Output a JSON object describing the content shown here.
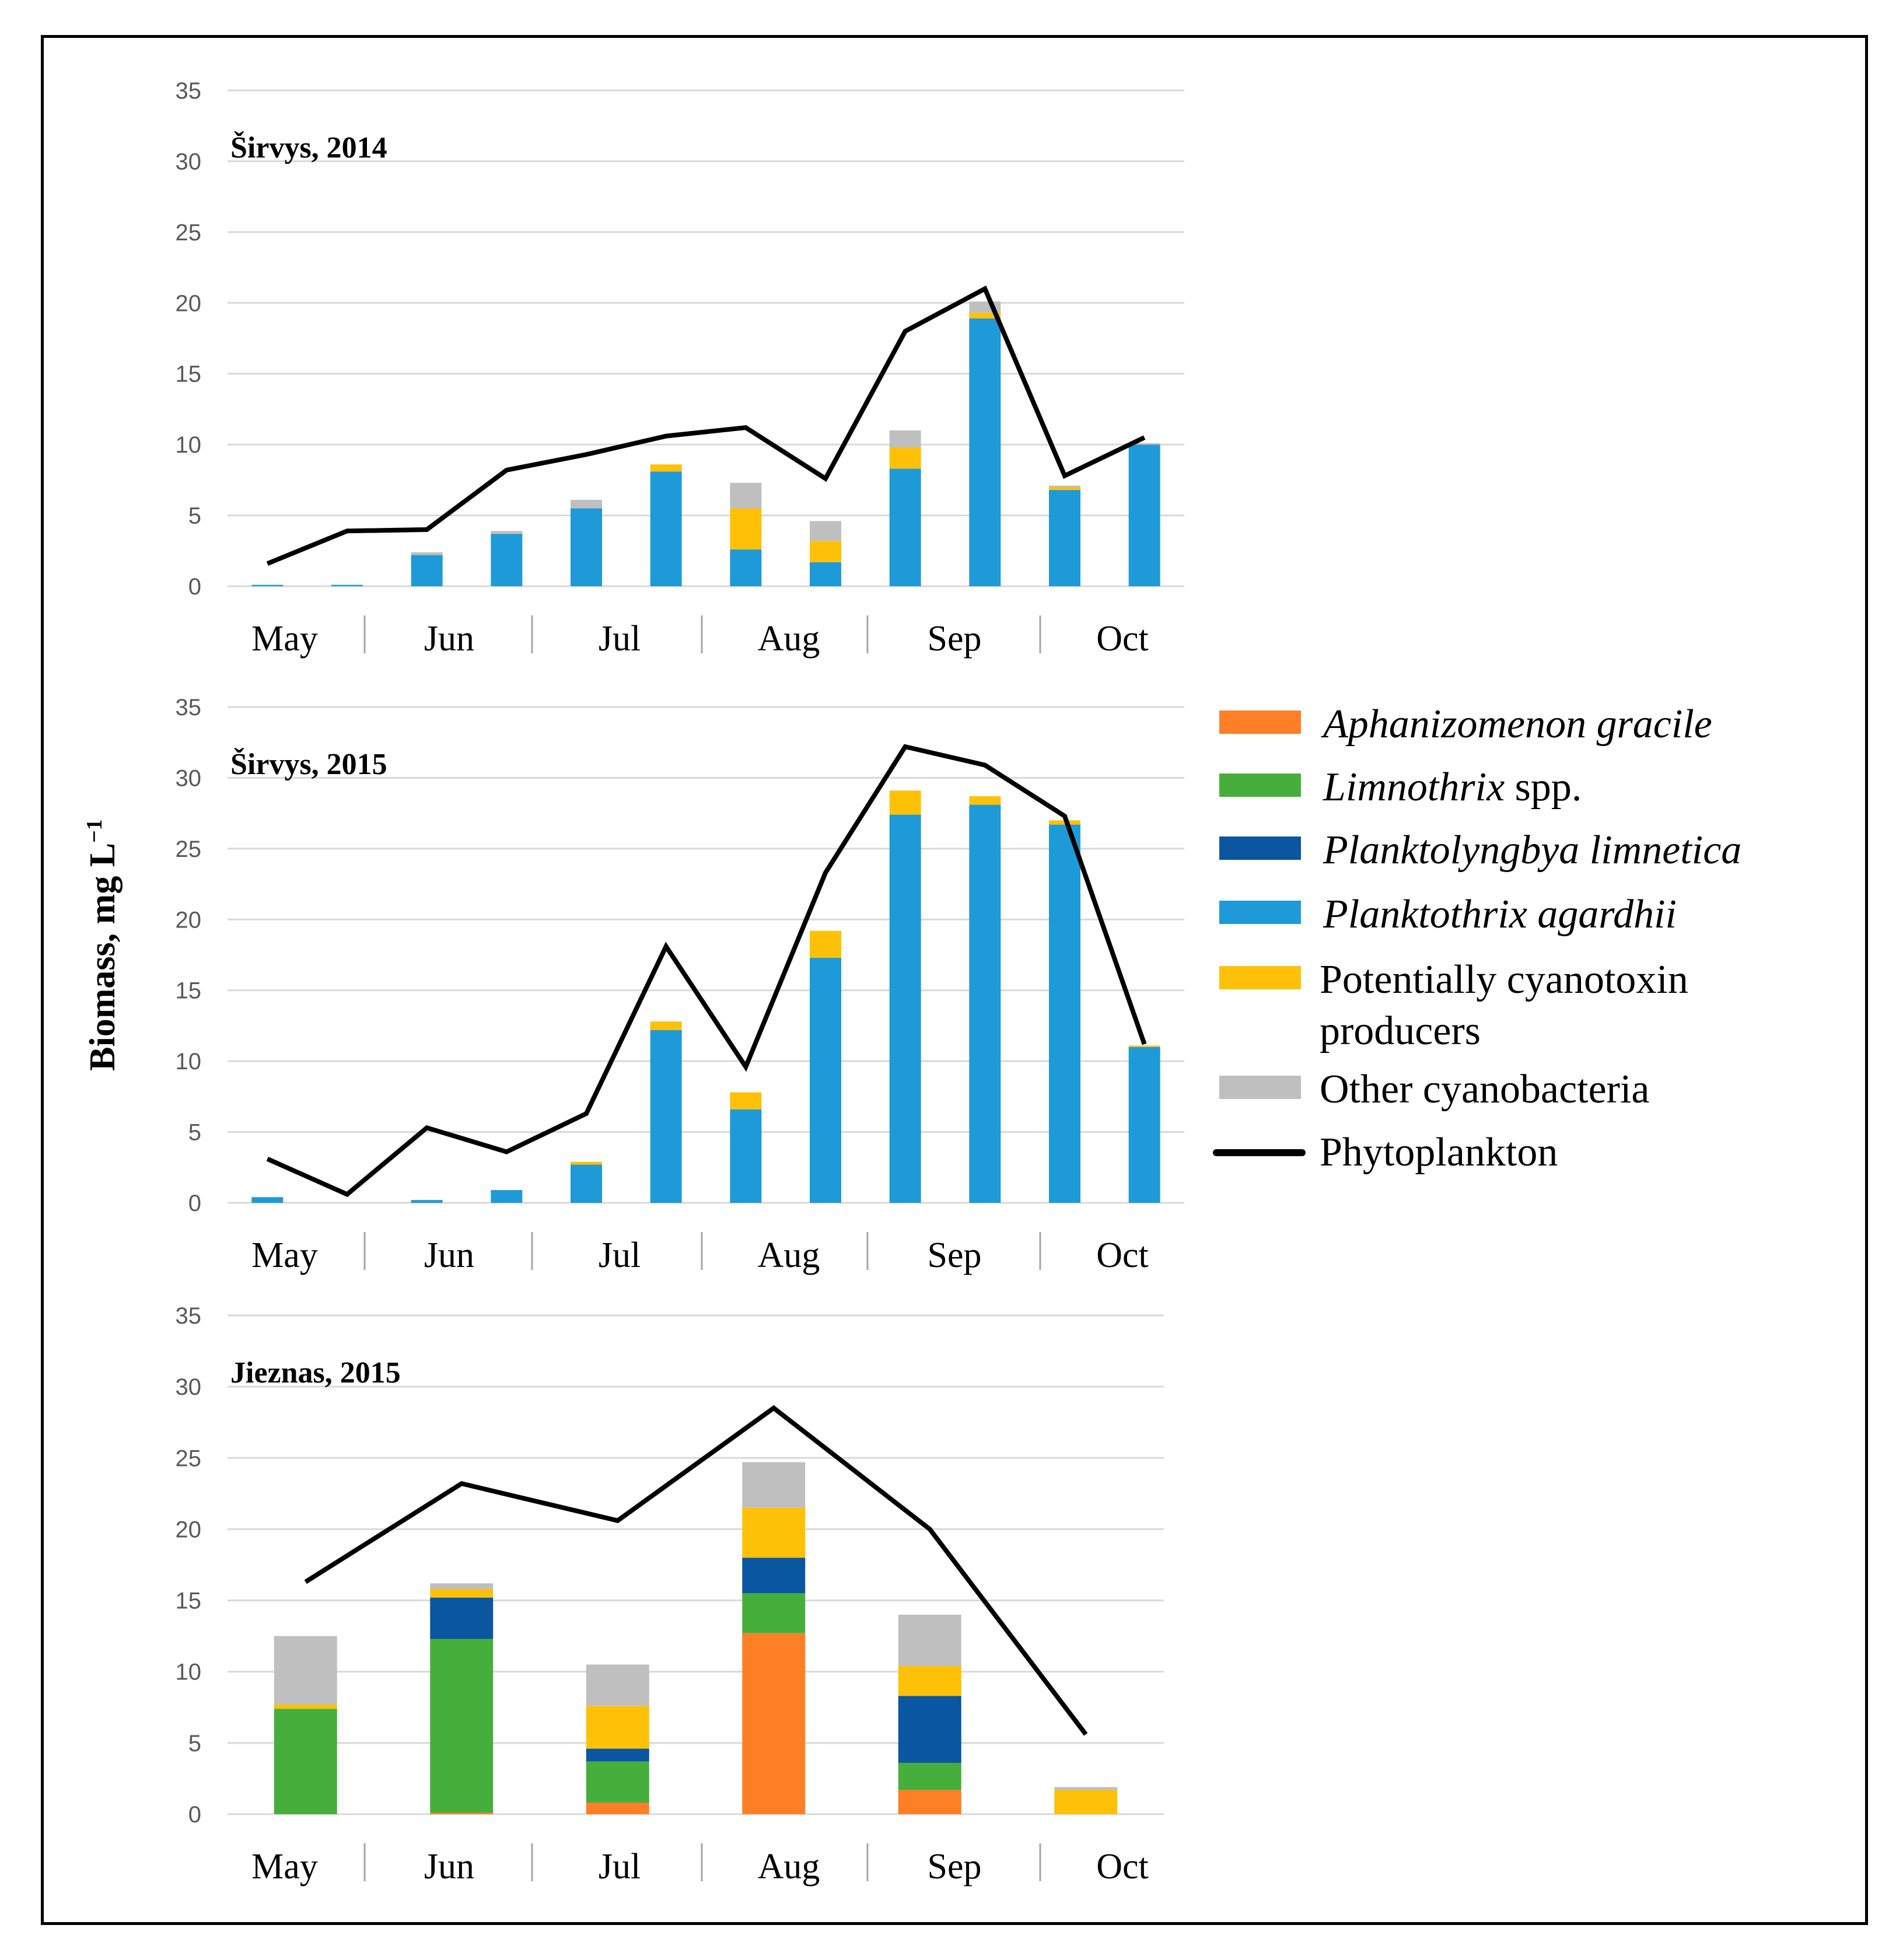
{
  "y_axis_label": "Biomass, mg L",
  "y_axis_label_sup": "−1",
  "colors": {
    "aphanizomenon": "#FF7F27",
    "limnothrix": "#46AF3C",
    "planktolyngbya": "#0A56A0",
    "planktothrix": "#1F9AD8",
    "potential": "#FFC107",
    "other": "#BFBFBF",
    "phytoplankton": "#000000",
    "grid": "#D9D9D9"
  },
  "legend": [
    {
      "key": "aphanizomenon",
      "parts": [
        {
          "t": "Aphanizomenon gracile",
          "i": true
        }
      ]
    },
    {
      "key": "limnothrix",
      "parts": [
        {
          "t": "Limnothrix",
          "i": true
        },
        {
          "t": " spp.",
          "i": false
        }
      ]
    },
    {
      "key": "planktolyngbya",
      "parts": [
        {
          "t": "Planktolyngbya limnetica",
          "i": true
        }
      ]
    },
    {
      "key": "planktothrix",
      "parts": [
        {
          "t": "Planktothrix agardhii",
          "i": true
        }
      ]
    },
    {
      "key": "potential",
      "lines": [
        "Potentially cyanotoxin",
        "producers"
      ]
    },
    {
      "key": "other",
      "lines": [
        "Other cyanobacteria"
      ]
    },
    {
      "key": "phytoplankton",
      "type": "line",
      "lines": [
        "Phytoplankton"
      ]
    }
  ],
  "chart_data": [
    {
      "type": "bar",
      "stacked": true,
      "title": "Širvys, 2014",
      "ylim": [
        0,
        35
      ],
      "yticks": [
        0,
        5,
        10,
        15,
        20,
        25,
        30,
        35
      ],
      "months": [
        "May",
        "Jun",
        "Jul",
        "Aug",
        "Sep",
        "Oct"
      ],
      "n_samples": 12,
      "series": [
        {
          "name": "Aphanizomenon gracile",
          "key": "aphanizomenon",
          "values": [
            0,
            0,
            0,
            0,
            0,
            0,
            0,
            0,
            0,
            0,
            0,
            0
          ]
        },
        {
          "name": "Limnothrix spp.",
          "key": "limnothrix",
          "values": [
            0,
            0,
            0,
            0,
            0,
            0,
            0,
            0,
            0,
            0,
            0,
            0
          ]
        },
        {
          "name": "Planktolyngbya limnetica",
          "key": "planktolyngbya",
          "values": [
            0,
            0,
            0,
            0,
            0,
            0,
            0,
            0,
            0,
            0,
            0,
            0
          ]
        },
        {
          "name": "Planktothrix agardhii",
          "key": "planktothrix",
          "values": [
            0.1,
            0.1,
            2.2,
            3.7,
            5.5,
            8.1,
            2.6,
            1.7,
            8.3,
            18.9,
            6.8,
            10.0
          ]
        },
        {
          "name": "Potentially cyanotoxin producers",
          "key": "potential",
          "values": [
            0,
            0,
            0,
            0,
            0,
            0.5,
            2.9,
            1.5,
            1.5,
            0.4,
            0.2,
            0
          ]
        },
        {
          "name": "Other cyanobacteria",
          "key": "other",
          "values": [
            0,
            0,
            0.2,
            0.2,
            0.6,
            0,
            1.8,
            1.4,
            1.2,
            0.8,
            0.1,
            0.1
          ]
        }
      ],
      "line": {
        "name": "Phytoplankton",
        "values": [
          1.6,
          3.9,
          4.0,
          8.2,
          9.3,
          10.6,
          11.2,
          7.6,
          18.0,
          21.0,
          7.8,
          10.5
        ]
      }
    },
    {
      "type": "bar",
      "stacked": true,
      "title": "Širvys, 2015",
      "ylim": [
        0,
        35
      ],
      "yticks": [
        0,
        5,
        10,
        15,
        20,
        25,
        30,
        35
      ],
      "months": [
        "May",
        "Jun",
        "Jul",
        "Aug",
        "Sep",
        "Oct"
      ],
      "n_samples": 12,
      "series": [
        {
          "name": "Aphanizomenon gracile",
          "key": "aphanizomenon",
          "values": [
            0,
            0,
            0,
            0,
            0,
            0,
            0,
            0,
            0,
            0,
            0,
            0
          ]
        },
        {
          "name": "Limnothrix spp.",
          "key": "limnothrix",
          "values": [
            0,
            0,
            0,
            0,
            0,
            0,
            0,
            0,
            0,
            0,
            0,
            0
          ]
        },
        {
          "name": "Planktolyngbya limnetica",
          "key": "planktolyngbya",
          "values": [
            0,
            0,
            0,
            0,
            0,
            0,
            0,
            0,
            0,
            0,
            0,
            0
          ]
        },
        {
          "name": "Planktothrix agardhii",
          "key": "planktothrix",
          "values": [
            0.4,
            0,
            0.2,
            0.9,
            2.7,
            12.2,
            6.6,
            17.3,
            27.4,
            28.1,
            26.7,
            11.0
          ]
        },
        {
          "name": "Potentially cyanotoxin producers",
          "key": "potential",
          "values": [
            0,
            0,
            0,
            0,
            0.2,
            0.6,
            1.2,
            1.9,
            1.7,
            0.6,
            0.3,
            0.1
          ]
        },
        {
          "name": "Other cyanobacteria",
          "key": "other",
          "values": [
            0,
            0,
            0,
            0,
            0,
            0,
            0,
            0,
            0,
            0,
            0,
            0
          ]
        }
      ],
      "line": {
        "name": "Phytoplankton",
        "values": [
          3.1,
          0.6,
          5.3,
          3.6,
          6.3,
          18.1,
          9.6,
          23.3,
          32.2,
          30.9,
          27.3,
          11.2
        ]
      }
    },
    {
      "type": "bar",
      "stacked": true,
      "title": "Jieznas, 2015",
      "ylim": [
        0,
        35
      ],
      "yticks": [
        0,
        5,
        10,
        15,
        20,
        25,
        30,
        35
      ],
      "months": [
        "May",
        "Jun",
        "Jul",
        "Aug",
        "Sep",
        "Oct"
      ],
      "n_samples": 6,
      "series": [
        {
          "name": "Aphanizomenon gracile",
          "key": "aphanizomenon",
          "values": [
            0,
            0.1,
            0.8,
            12.7,
            1.7,
            0
          ]
        },
        {
          "name": "Limnothrix spp.",
          "key": "limnothrix",
          "values": [
            7.4,
            12.2,
            2.9,
            2.8,
            1.9,
            0
          ]
        },
        {
          "name": "Planktolyngbya limnetica",
          "key": "planktolyngbya",
          "values": [
            0,
            2.9,
            0.9,
            2.5,
            4.7,
            0
          ]
        },
        {
          "name": "Planktothrix agardhii",
          "key": "planktothrix",
          "values": [
            0,
            0,
            0,
            0,
            0,
            0
          ]
        },
        {
          "name": "Potentially cyanotoxin producers",
          "key": "potential",
          "values": [
            0.3,
            0.6,
            3.0,
            3.5,
            2.1,
            1.7
          ]
        },
        {
          "name": "Other cyanobacteria",
          "key": "other",
          "values": [
            4.8,
            0.4,
            2.9,
            3.2,
            3.6,
            0.2
          ]
        }
      ],
      "line": {
        "name": "Phytoplankton",
        "values": [
          16.3,
          23.2,
          20.6,
          28.5,
          20.0,
          5.6
        ]
      }
    }
  ]
}
